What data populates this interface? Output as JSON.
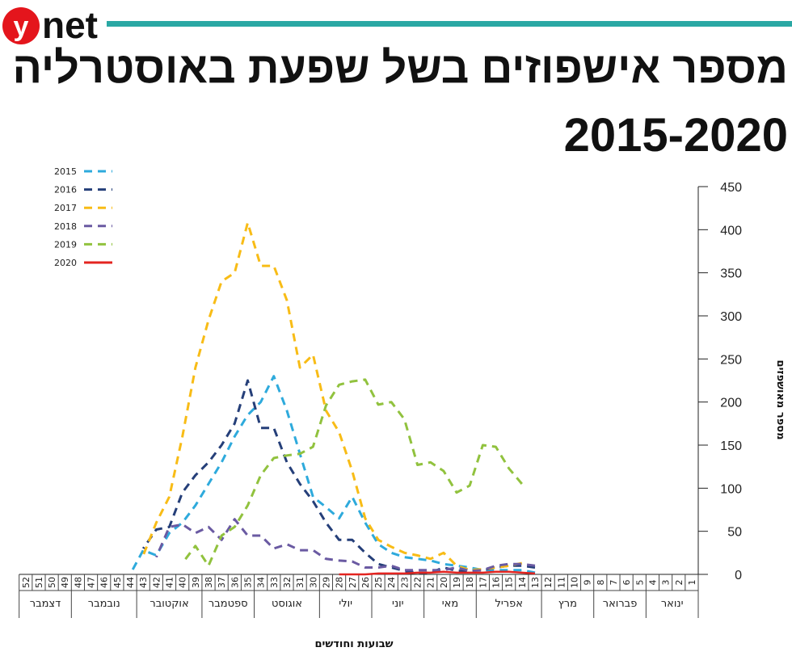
{
  "brand": {
    "y": "y",
    "net": "net",
    "logo_red": "#e4151c",
    "bar_teal": "#2aa8a4"
  },
  "header": {
    "title_line1": "מספר אישפוזים בשל שפעת באוסטרליה",
    "title_line2": "2015-2020"
  },
  "chart_data": {
    "type": "line",
    "x_direction": "right-to-left",
    "ylabel": "מספר מאושפזים",
    "xlabel": "שבועות וחודשים",
    "ylim": [
      0,
      450
    ],
    "yticks": [
      0,
      50,
      100,
      150,
      200,
      250,
      300,
      350,
      400,
      450
    ],
    "xlim": [
      1,
      52
    ],
    "weeks": [
      1,
      2,
      3,
      4,
      5,
      6,
      7,
      8,
      9,
      10,
      11,
      12,
      13,
      14,
      15,
      16,
      17,
      18,
      19,
      20,
      21,
      22,
      23,
      24,
      25,
      26,
      27,
      28,
      29,
      30,
      31,
      32,
      33,
      34,
      35,
      36,
      37,
      38,
      39,
      40,
      41,
      42,
      43,
      44,
      45,
      46,
      47,
      48,
      49,
      50,
      51,
      52
    ],
    "months": [
      {
        "name": "ינואר",
        "from": 0.5,
        "to": 4.5
      },
      {
        "name": "פברואר",
        "from": 4.5,
        "to": 8.5
      },
      {
        "name": "מרץ",
        "from": 8.5,
        "to": 12.5
      },
      {
        "name": "אפריל",
        "from": 12.5,
        "to": 17.5
      },
      {
        "name": "מאי",
        "from": 17.5,
        "to": 21.5
      },
      {
        "name": "יוני",
        "from": 21.5,
        "to": 25.5
      },
      {
        "name": "יולי",
        "from": 25.5,
        "to": 29.5
      },
      {
        "name": "אוגוסט",
        "from": 29.5,
        "to": 34.5
      },
      {
        "name": "ספטמבר",
        "from": 34.5,
        "to": 38.5
      },
      {
        "name": "אוקטובר",
        "from": 38.5,
        "to": 43.5
      },
      {
        "name": "נובמבר",
        "from": 43.5,
        "to": 48.5
      },
      {
        "name": "דצמבר",
        "from": 48.5,
        "to": 52.5
      }
    ],
    "series": [
      {
        "name": "2015",
        "color": "#2eaadc",
        "dashed": true,
        "points": [
          [
            13,
            2
          ],
          [
            14,
            5
          ],
          [
            15,
            5
          ],
          [
            16,
            5
          ],
          [
            17,
            5
          ],
          [
            18,
            8
          ],
          [
            19,
            10
          ],
          [
            20,
            12
          ],
          [
            21,
            16
          ],
          [
            22,
            18
          ],
          [
            23,
            20
          ],
          [
            24,
            25
          ],
          [
            25,
            35
          ],
          [
            26,
            60
          ],
          [
            27,
            90
          ],
          [
            28,
            65
          ],
          [
            29,
            78
          ],
          [
            30,
            90
          ],
          [
            31,
            140
          ],
          [
            32,
            190
          ],
          [
            33,
            230
          ],
          [
            34,
            200
          ],
          [
            35,
            185
          ],
          [
            36,
            160
          ],
          [
            37,
            130
          ],
          [
            38,
            105
          ],
          [
            39,
            80
          ],
          [
            40,
            60
          ],
          [
            41,
            48
          ],
          [
            42,
            22
          ],
          [
            43,
            28
          ],
          [
            44,
            0
          ]
        ]
      },
      {
        "name": "2016",
        "color": "#253f79",
        "dashed": true,
        "points": [
          [
            13,
            8
          ],
          [
            14,
            10
          ],
          [
            15,
            10
          ],
          [
            16,
            8
          ],
          [
            17,
            5
          ],
          [
            18,
            4
          ],
          [
            19,
            4
          ],
          [
            20,
            8
          ],
          [
            21,
            2
          ],
          [
            22,
            2
          ],
          [
            23,
            4
          ],
          [
            24,
            8
          ],
          [
            25,
            12
          ],
          [
            26,
            25
          ],
          [
            27,
            40
          ],
          [
            28,
            40
          ],
          [
            29,
            60
          ],
          [
            30,
            85
          ],
          [
            31,
            105
          ],
          [
            32,
            130
          ],
          [
            33,
            170
          ],
          [
            34,
            170
          ],
          [
            35,
            225
          ],
          [
            36,
            175
          ],
          [
            37,
            150
          ],
          [
            38,
            130
          ],
          [
            39,
            115
          ],
          [
            40,
            95
          ],
          [
            41,
            55
          ],
          [
            42,
            52
          ],
          [
            43,
            30
          ]
        ]
      },
      {
        "name": "2017",
        "color": "#f8bc16",
        "dashed": true,
        "points": [
          [
            14,
            13
          ],
          [
            15,
            10
          ],
          [
            16,
            8
          ],
          [
            17,
            6
          ],
          [
            18,
            5
          ],
          [
            19,
            10
          ],
          [
            20,
            25
          ],
          [
            21,
            18
          ],
          [
            22,
            22
          ],
          [
            23,
            25
          ],
          [
            24,
            32
          ],
          [
            25,
            40
          ],
          [
            26,
            65
          ],
          [
            27,
            120
          ],
          [
            28,
            165
          ],
          [
            29,
            190
          ],
          [
            30,
            255
          ],
          [
            31,
            240
          ],
          [
            32,
            318
          ],
          [
            33,
            358
          ],
          [
            34,
            358
          ],
          [
            35,
            408
          ],
          [
            36,
            350
          ],
          [
            37,
            340
          ],
          [
            38,
            295
          ],
          [
            39,
            240
          ],
          [
            40,
            160
          ],
          [
            41,
            90
          ],
          [
            42,
            60
          ],
          [
            43,
            22
          ]
        ]
      },
      {
        "name": "2018",
        "color": "#6a5aa2",
        "dashed": true,
        "points": [
          [
            13,
            10
          ],
          [
            14,
            12
          ],
          [
            15,
            12
          ],
          [
            16,
            10
          ],
          [
            17,
            5
          ],
          [
            18,
            4
          ],
          [
            19,
            8
          ],
          [
            20,
            5
          ],
          [
            21,
            5
          ],
          [
            22,
            5
          ],
          [
            23,
            5
          ],
          [
            24,
            10
          ],
          [
            25,
            8
          ],
          [
            26,
            8
          ],
          [
            27,
            15
          ],
          [
            28,
            16
          ],
          [
            29,
            18
          ],
          [
            30,
            28
          ],
          [
            31,
            28
          ],
          [
            32,
            35
          ],
          [
            33,
            30
          ],
          [
            34,
            45
          ],
          [
            35,
            45
          ],
          [
            36,
            64
          ],
          [
            37,
            40
          ],
          [
            38,
            55
          ],
          [
            39,
            48
          ],
          [
            40,
            58
          ],
          [
            41,
            55
          ],
          [
            42,
            20
          ]
        ]
      },
      {
        "name": "2019",
        "color": "#91c23e",
        "dashed": true,
        "points": [
          [
            14,
            105
          ],
          [
            15,
            123
          ],
          [
            16,
            148
          ],
          [
            17,
            150
          ],
          [
            18,
            103
          ],
          [
            19,
            95
          ],
          [
            20,
            120
          ],
          [
            21,
            130
          ],
          [
            22,
            127
          ],
          [
            23,
            180
          ],
          [
            24,
            200
          ],
          [
            25,
            197
          ],
          [
            26,
            226
          ],
          [
            27,
            224
          ],
          [
            28,
            220
          ],
          [
            29,
            196
          ],
          [
            30,
            148
          ],
          [
            31,
            140
          ],
          [
            32,
            138
          ],
          [
            33,
            135
          ],
          [
            34,
            115
          ],
          [
            35,
            80
          ],
          [
            36,
            55
          ],
          [
            37,
            45
          ],
          [
            38,
            10
          ],
          [
            39,
            33
          ],
          [
            40,
            13
          ]
        ]
      },
      {
        "name": "2020",
        "color": "#e32420",
        "dashed": false,
        "points": [
          [
            13,
            1
          ],
          [
            14,
            2
          ],
          [
            15,
            3
          ],
          [
            16,
            3
          ],
          [
            17,
            2
          ],
          [
            18,
            2
          ],
          [
            19,
            2
          ],
          [
            20,
            3
          ],
          [
            21,
            2
          ],
          [
            22,
            2
          ],
          [
            23,
            1
          ],
          [
            24,
            1
          ],
          [
            25,
            1
          ],
          [
            26,
            0
          ],
          [
            27,
            0
          ],
          [
            28,
            0
          ]
        ]
      }
    ]
  }
}
